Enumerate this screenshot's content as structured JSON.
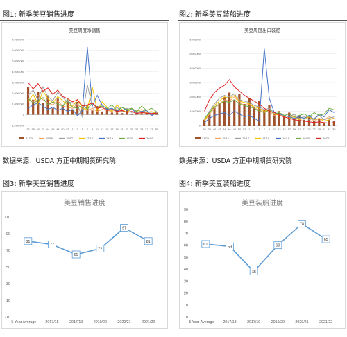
{
  "figures": {
    "fig1": "图1: 新季美豆销售进度",
    "fig2": "图2: 新季美豆装船进度",
    "fig3": "图3: 新季美豆销售进度",
    "fig4": "图4: 新季美豆装船进度"
  },
  "sources": {
    "left": "数据来源：USDA 方正中期期货研究院",
    "right": "数据来源：USDA 方正中期期货研究院"
  },
  "colors": {
    "y2122": "#a0522d",
    "y1516": "#f4a460",
    "y1617": "#9e9e9e",
    "y1718": "#f2c200",
    "y1819": "#4472c4",
    "y1920": "#70ad47",
    "y2021": "#e02020",
    "line_blue": "#5b9bd5"
  },
  "chart_data": [
    {
      "type": "line",
      "title": "美豆周度净销售",
      "x": [
        "36",
        "38",
        "40",
        "42",
        "44",
        "46",
        "48",
        "50",
        "52",
        "1",
        "3",
        "5",
        "7",
        "9",
        "11",
        "13",
        "15",
        "17",
        "19",
        "21",
        "23",
        "25",
        "27",
        "29",
        "31",
        "33",
        "35"
      ],
      "yticks": [
        "7,000,000",
        "6,000,000",
        "5,000,000",
        "4,000,000",
        "3,000,000",
        "2,000,000",
        "1,000,000",
        "0",
        "-1,000,000"
      ],
      "ylim": [
        -1000000,
        7000000
      ],
      "legend": [
        "21/22",
        "15/16",
        "16/17",
        "17/18",
        "18/19",
        "19/20",
        "20/21"
      ],
      "bar_series": {
        "name": "21/22",
        "values": [
          2600000,
          1400000,
          2100000,
          1100000,
          1800000,
          600000,
          1500000,
          900000,
          1300000,
          500000,
          1200000,
          700000,
          900000,
          400000,
          800000,
          300000,
          600000,
          200000,
          500000,
          150000,
          400000,
          100000,
          300000,
          200000,
          250000,
          150000,
          200000
        ]
      },
      "series": [
        {
          "name": "15/16",
          "values": [
            1500000,
            1200000,
            1800000,
            1400000,
            1100000,
            900000,
            1300000,
            800000,
            700000,
            600000,
            1000000,
            500000,
            400000,
            600000,
            300000,
            500000,
            400000,
            300000,
            200000,
            350000,
            250000,
            300000,
            200000,
            150000,
            250000,
            100000,
            150000
          ]
        },
        {
          "name": "16/17",
          "values": [
            1800000,
            2300000,
            1400000,
            2600000,
            1700000,
            1300000,
            2100000,
            1600000,
            1200000,
            1100000,
            900000,
            -200000,
            2800000,
            700000,
            600000,
            900000,
            500000,
            400000,
            700000,
            300000,
            600000,
            200000,
            400000,
            300000,
            200000,
            150000,
            200000
          ]
        },
        {
          "name": "17/18",
          "values": [
            1200000,
            1900000,
            1000000,
            2200000,
            1500000,
            1100000,
            1700000,
            1300000,
            900000,
            800000,
            1400000,
            600000,
            500000,
            2600000,
            400000,
            1200000,
            700000,
            300000,
            900000,
            500000,
            200000,
            600000,
            300000,
            500000,
            200000,
            300000,
            100000
          ]
        },
        {
          "name": "18/19",
          "values": [
            600000,
            900000,
            1100000,
            800000,
            500000,
            700000,
            400000,
            600000,
            300000,
            500000,
            -100000,
            400000,
            6300000,
            800000,
            1800000,
            900000,
            500000,
            600000,
            300000,
            700000,
            400000,
            500000,
            200000,
            300000,
            400000,
            -100000,
            200000
          ]
        },
        {
          "name": "19/20",
          "values": [
            1500000,
            1100000,
            1300000,
            1600000,
            900000,
            1200000,
            1000000,
            800000,
            1400000,
            700000,
            600000,
            900000,
            500000,
            1100000,
            700000,
            800000,
            600000,
            900000,
            400000,
            700000,
            500000,
            600000,
            300000,
            800000,
            400000,
            600000,
            300000
          ]
        },
        {
          "name": "20/21",
          "values": [
            3000000,
            2400000,
            2900000,
            2200000,
            2500000,
            1900000,
            2300000,
            1700000,
            1500000,
            1200000,
            1400000,
            800000,
            900000,
            1100000,
            600000,
            700000,
            400000,
            500000,
            300000,
            400000,
            200000,
            300000,
            100000,
            200000,
            150000,
            100000,
            150000
          ]
        }
      ]
    },
    {
      "type": "line",
      "title": "美豆周度出口装船",
      "x": [
        "36",
        "38",
        "40",
        "42",
        "44",
        "46",
        "48",
        "50",
        "52",
        "1",
        "3",
        "5",
        "7",
        "9",
        "11",
        "13",
        "15",
        "17",
        "19",
        "21",
        "23",
        "25",
        "27",
        "29",
        "31",
        "33",
        "35"
      ],
      "yticks": [
        "6000000",
        "5000000",
        "4000000",
        "3000000",
        "2000000",
        "1000000",
        "0"
      ],
      "ylim": [
        0,
        6000000
      ],
      "legend": [
        "21/22",
        "15/16",
        "16/17",
        "17/18",
        "18/19",
        "19/20",
        "20/21"
      ],
      "bar_series": {
        "name": "21/22",
        "values": [
          400000,
          900000,
          1300000,
          1600000,
          2000000,
          2300000,
          1800000,
          2200000,
          1500000,
          1900000,
          1300000,
          1700000,
          1100000,
          1400000,
          800000,
          1000000,
          600000,
          900000,
          500000,
          700000,
          400000,
          600000,
          300000,
          500000,
          200000,
          400000,
          300000
        ]
      },
      "series": [
        {
          "name": "15/16",
          "values": [
            300000,
            800000,
            1200000,
            1500000,
            1800000,
            1700000,
            2000000,
            1600000,
            1400000,
            1500000,
            1200000,
            1100000,
            900000,
            1000000,
            700000,
            800000,
            600000,
            500000,
            700000,
            400000,
            500000,
            600000,
            300000,
            500000,
            400000,
            600000,
            500000
          ]
        },
        {
          "name": "16/17",
          "values": [
            400000,
            1000000,
            1500000,
            1900000,
            2100000,
            2000000,
            2200000,
            1800000,
            1700000,
            1600000,
            1400000,
            1300000,
            1100000,
            1200000,
            900000,
            800000,
            700000,
            600000,
            800000,
            500000,
            600000,
            400000,
            500000,
            700000,
            400000,
            500000,
            600000
          ]
        },
        {
          "name": "17/18",
          "values": [
            350000,
            900000,
            1400000,
            1700000,
            2000000,
            1900000,
            2100000,
            1700000,
            1600000,
            1500000,
            1300000,
            1200000,
            1000000,
            1100000,
            800000,
            700000,
            600000,
            500000,
            600000,
            400000,
            500000,
            600000,
            400000,
            500000,
            300000,
            400000,
            500000
          ]
        },
        {
          "name": "18/19",
          "values": [
            200000,
            500000,
            700000,
            800000,
            900000,
            700000,
            1000000,
            800000,
            600000,
            700000,
            500000,
            300000,
            5400000,
            1900000,
            900000,
            800000,
            700000,
            600000,
            500000,
            600000,
            500000,
            700000,
            400000,
            800000,
            600000,
            1100000,
            900000
          ]
        },
        {
          "name": "19/20",
          "values": [
            500000,
            900000,
            1300000,
            1500000,
            1700000,
            1600000,
            1800000,
            1500000,
            1400000,
            1300000,
            1200000,
            1000000,
            900000,
            1100000,
            800000,
            900000,
            700000,
            800000,
            600000,
            700000,
            800000,
            600000,
            900000,
            700000,
            800000,
            1200000,
            1100000
          ]
        },
        {
          "name": "20/21",
          "values": [
            1000000,
            1800000,
            2300000,
            2600000,
            2800000,
            3200000,
            2700000,
            2400000,
            2100000,
            1900000,
            1700000,
            1500000,
            1200000,
            1000000,
            900000,
            700000,
            600000,
            500000,
            400000,
            350000,
            300000,
            250000,
            200000,
            250000,
            200000,
            150000,
            200000
          ]
        }
      ]
    },
    {
      "type": "line",
      "title": "美豆销售进度",
      "categories": [
        "5 Year Average",
        "2017/18",
        "2017/19",
        "2019/20",
        "2020/21",
        "2021/22"
      ],
      "series": [
        {
          "values": [
            81,
            77,
            65,
            72,
            97,
            81
          ]
        }
      ],
      "yticks": [
        110,
        90,
        70,
        50,
        30,
        10,
        -10
      ],
      "ylim": [
        -10,
        110
      ]
    },
    {
      "type": "line",
      "title": "美豆装船进度",
      "categories": [
        "5 Year Average",
        "2017/18",
        "2017/19",
        "2019/20",
        "2020/21",
        "2021/22"
      ],
      "series": [
        {
          "values": [
            61,
            59,
            38,
            60,
            78,
            65
          ]
        }
      ],
      "yticks": [
        90,
        80,
        70,
        60,
        50,
        40,
        30,
        20,
        10,
        0
      ],
      "ylim": [
        0,
        90
      ]
    }
  ]
}
